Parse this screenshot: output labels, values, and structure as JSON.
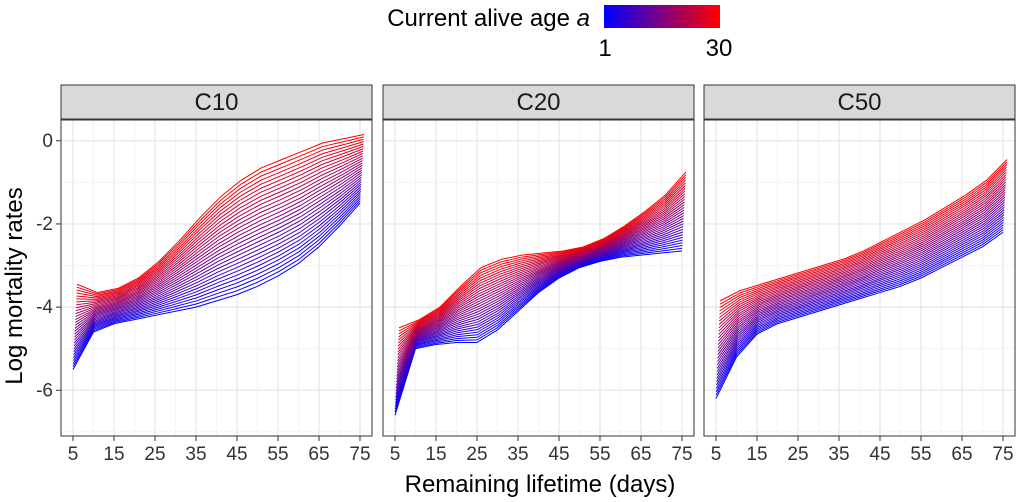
{
  "chart_data": {
    "type": "line",
    "xlabel": "Remaining lifetime (days)",
    "ylabel": "Log mortality rates",
    "xlim": [
      5,
      75
    ],
    "ylim": [
      -7.1,
      0.5
    ],
    "x_ticks": [
      5,
      15,
      25,
      35,
      45,
      55,
      65,
      75
    ],
    "y_ticks": [
      0,
      -2,
      -4,
      -6
    ],
    "x": [
      5,
      10,
      15,
      20,
      25,
      30,
      35,
      40,
      45,
      50,
      55,
      60,
      65,
      70,
      75
    ],
    "legend": {
      "title": "Current alive age ",
      "title_italic": "a",
      "min_label": "1",
      "max_label": "30",
      "min_value": 1,
      "max_value": 30,
      "low_color": "#0000ff",
      "high_color": "#ff0000",
      "placement": "top"
    },
    "panels": [
      {
        "name": "C10",
        "series_age_1": [
          -5.5,
          -4.6,
          -4.4,
          -4.3,
          -4.2,
          -4.1,
          -4.0,
          -3.85,
          -3.7,
          -3.5,
          -3.25,
          -2.95,
          -2.55,
          -2.05,
          -1.5
        ],
        "series_age_30": [
          -3.45,
          -3.65,
          -3.55,
          -3.3,
          -2.9,
          -2.4,
          -1.85,
          -1.35,
          -0.95,
          -0.65,
          -0.45,
          -0.25,
          -0.05,
          0.05,
          0.15
        ]
      },
      {
        "name": "C20",
        "series_age_1": [
          -6.6,
          -5.0,
          -4.9,
          -4.85,
          -4.85,
          -4.55,
          -4.1,
          -3.65,
          -3.3,
          -3.05,
          -2.9,
          -2.8,
          -2.75,
          -2.7,
          -2.65
        ],
        "series_age_30": [
          -4.5,
          -4.3,
          -4.0,
          -3.5,
          -3.05,
          -2.85,
          -2.75,
          -2.7,
          -2.65,
          -2.55,
          -2.35,
          -2.05,
          -1.7,
          -1.3,
          -0.75
        ]
      },
      {
        "name": "C50",
        "series_age_1": [
          -6.2,
          -5.2,
          -4.65,
          -4.4,
          -4.25,
          -4.1,
          -3.95,
          -3.8,
          -3.65,
          -3.5,
          -3.3,
          -3.05,
          -2.8,
          -2.55,
          -2.2
        ],
        "series_age_30": [
          -3.85,
          -3.6,
          -3.45,
          -3.3,
          -3.15,
          -3.0,
          -2.85,
          -2.65,
          -2.4,
          -2.15,
          -1.9,
          -1.6,
          -1.3,
          -0.95,
          -0.45
        ]
      }
    ],
    "n_series_per_panel": 30
  }
}
